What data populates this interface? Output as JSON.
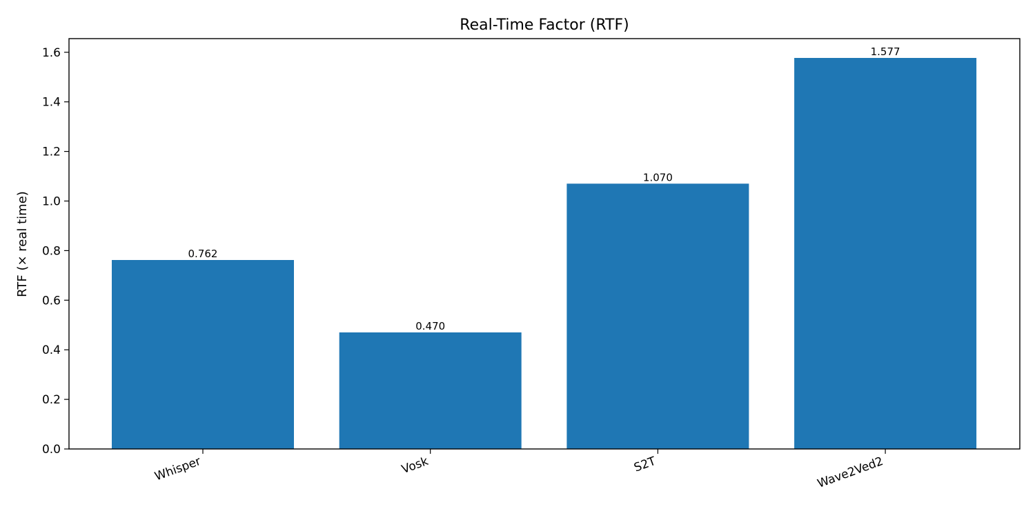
{
  "chart_data": {
    "type": "bar",
    "title": "Real-Time Factor (RTF)",
    "xlabel": "",
    "ylabel": "RTF (× real time)",
    "categories": [
      "Whisper",
      "Vosk",
      "S2T",
      "Wave2Ved2"
    ],
    "values": [
      0.762,
      0.47,
      1.07,
      1.577
    ],
    "value_labels": [
      "0.762",
      "0.470",
      "1.070",
      "1.577"
    ],
    "ylim": [
      0,
      1.655
    ],
    "yticks": [
      0.0,
      0.2,
      0.4,
      0.6,
      0.8,
      1.0,
      1.2,
      1.4,
      1.6
    ],
    "ytick_labels": [
      "0.0",
      "0.2",
      "0.4",
      "0.6",
      "0.8",
      "1.0",
      "1.2",
      "1.4",
      "1.6"
    ],
    "grid": false,
    "legend": "none",
    "bar_color": "#1f77b4",
    "xtick_rotation": "rotated ~20°"
  }
}
